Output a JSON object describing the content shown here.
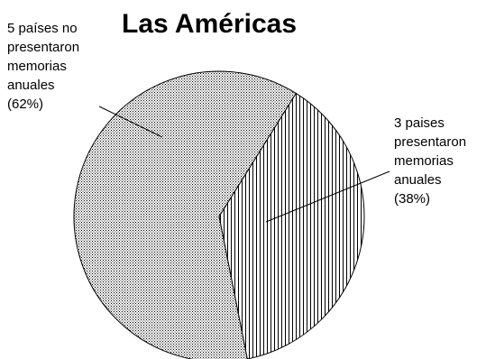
{
  "chart_data": {
    "type": "pie",
    "title": "Las Américas",
    "slices": [
      {
        "value": 62,
        "pattern": "dots",
        "label_lines": [
          "5 países no",
          "presentaron",
          "memorias",
          "anuales",
          "(62%)"
        ]
      },
      {
        "value": 38,
        "pattern": "vertical-lines",
        "label_lines": [
          "3 paises",
          "presentaron",
          "memorias",
          "anuales",
          "(38%)"
        ]
      }
    ],
    "colors": {
      "fill": "#ffffff",
      "pattern": "#000000",
      "outline": "#000000"
    }
  }
}
